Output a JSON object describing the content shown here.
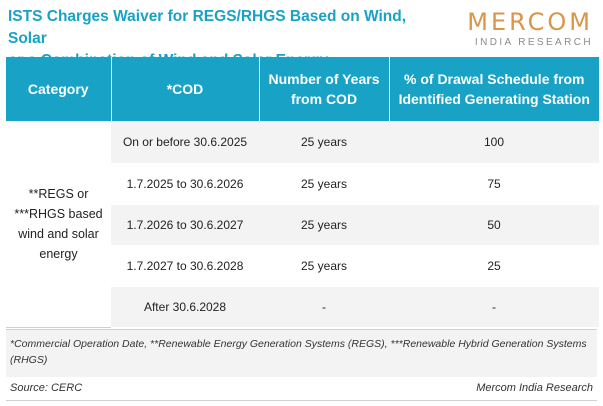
{
  "title": {
    "line1": "ISTS Charges Waiver for REGS/RHGS Based on Wind, Solar",
    "line2": "or a Combination of Wind and Solar Energy"
  },
  "logo": {
    "main": "MERCOM",
    "sub": "INDIA RESEARCH"
  },
  "table": {
    "headers": [
      "Category",
      "*COD",
      "Number of Years from COD",
      "% of Drawal Schedule from Identified Generating Station"
    ],
    "category": "**REGS or ***RHGS based wind and solar energy",
    "rows": [
      {
        "cod": "On or before 30.6.2025",
        "years": "25 years",
        "percent": "100"
      },
      {
        "cod": "1.7.2025 to 30.6.2026",
        "years": "25 years",
        "percent": "75"
      },
      {
        "cod": "1.7.2026 to 30.6.2027",
        "years": "25 years",
        "percent": "50"
      },
      {
        "cod": "1.7.2027 to 30.6.2028",
        "years": "25 years",
        "percent": "25"
      },
      {
        "cod": "After 30.6.2028",
        "years": "-",
        "percent": "-"
      }
    ]
  },
  "footnote": "*Commercial Operation Date, **Renewable Energy Generation Systems (REGS), ***Renewable Hybrid Generation Systems (RHGS)",
  "source": "Source: CERC",
  "credit": "Mercom India Research",
  "colors": {
    "accent": "#18a2c6",
    "logo": "#d9954a",
    "row_shade": "#f3f3f3"
  }
}
